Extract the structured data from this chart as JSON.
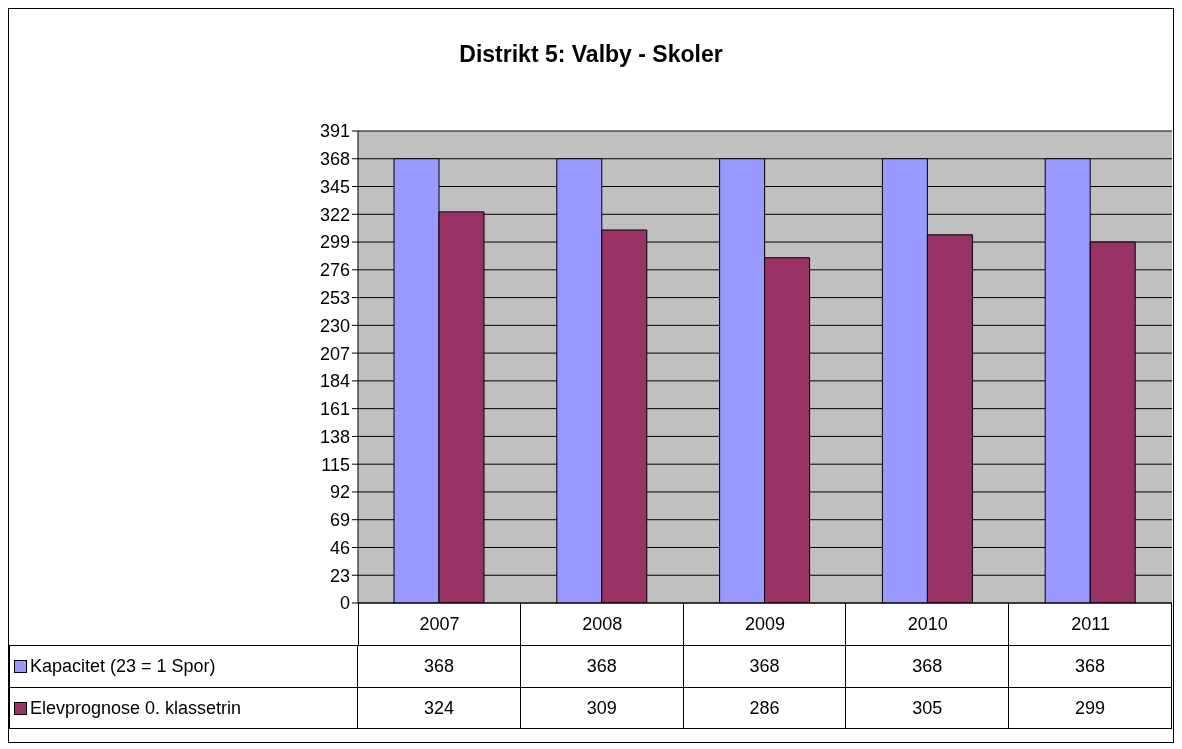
{
  "chart_data": {
    "type": "bar",
    "title": "Distrikt 5: Valby - Skoler",
    "categories": [
      "2007",
      "2008",
      "2009",
      "2010",
      "2011"
    ],
    "series": [
      {
        "name": "Kapacitet (23 = 1 Spor)",
        "color": "#9999ff",
        "values": [
          368,
          368,
          368,
          368,
          368
        ]
      },
      {
        "name": "Elevprognose 0. klassetrin",
        "color": "#993366",
        "values": [
          324,
          309,
          286,
          305,
          299
        ]
      }
    ],
    "ylim": [
      0,
      391
    ],
    "yticks": [
      0,
      23,
      46,
      69,
      92,
      115,
      138,
      161,
      184,
      207,
      230,
      253,
      276,
      299,
      322,
      345,
      368,
      391
    ],
    "grid": "y",
    "legend": "bottom",
    "data_labels": true
  }
}
